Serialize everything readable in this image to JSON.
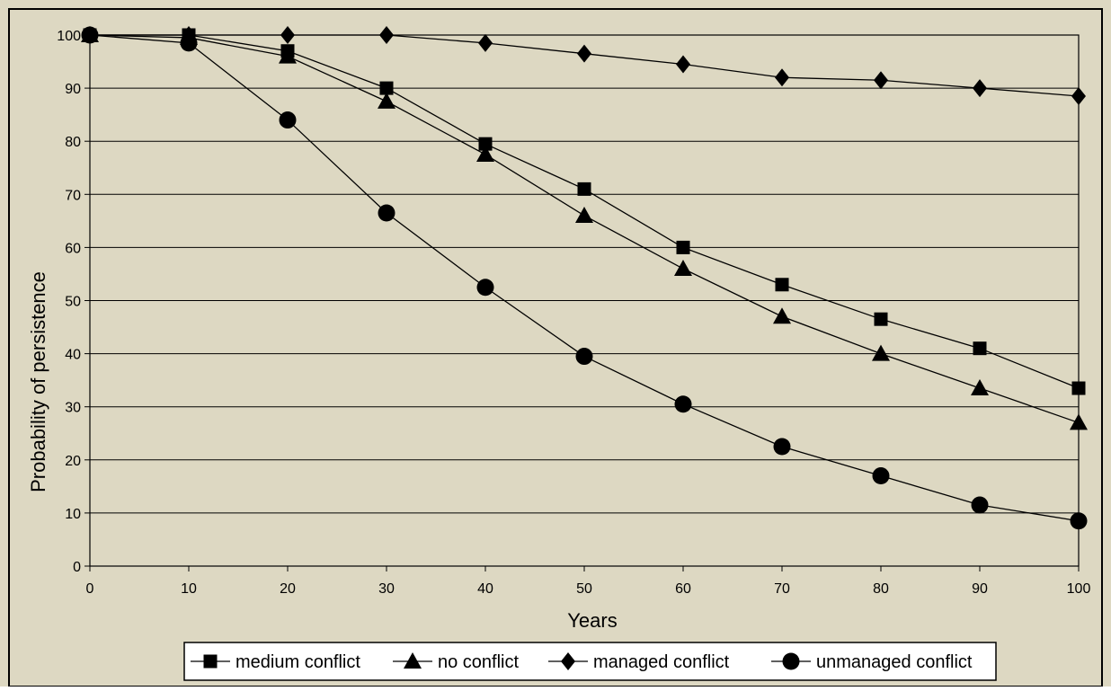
{
  "chart_data": {
    "type": "line",
    "title": "",
    "xlabel": "Years",
    "ylabel": "Probability of persistence",
    "xlim": [
      0,
      100
    ],
    "ylim": [
      0,
      100
    ],
    "x_ticks": [
      0,
      10,
      20,
      30,
      40,
      50,
      60,
      70,
      80,
      90,
      100
    ],
    "y_ticks": [
      0,
      10,
      20,
      30,
      40,
      50,
      60,
      70,
      80,
      90,
      100
    ],
    "grid": "horizontal",
    "legend_position": "bottom",
    "x": [
      0,
      10,
      20,
      30,
      40,
      50,
      60,
      70,
      80,
      90,
      100
    ],
    "series": [
      {
        "name": "medium conflict",
        "marker": "square",
        "values": [
          100,
          100,
          97,
          90,
          79.5,
          71,
          60,
          53,
          46.5,
          41,
          33.5
        ]
      },
      {
        "name": "no conflict",
        "marker": "triangle",
        "values": [
          100,
          99.5,
          96,
          87.5,
          77.5,
          66,
          56,
          47,
          40,
          33.5,
          27
        ]
      },
      {
        "name": "managed conflict",
        "marker": "diamond",
        "values": [
          100,
          100,
          100,
          100,
          98.5,
          96.5,
          94.5,
          92,
          91.5,
          90,
          88.5
        ]
      },
      {
        "name": "unmanaged conflict",
        "marker": "circle",
        "values": [
          100,
          98.5,
          84,
          66.5,
          52.5,
          39.5,
          30.5,
          22.5,
          17,
          11.5,
          8.5
        ]
      }
    ]
  },
  "colors": {
    "background": "#ddd8c2",
    "plot_background": "#ddd8c2",
    "frame": "#000000",
    "series": "#000000",
    "legend_background": "#ffffff"
  }
}
